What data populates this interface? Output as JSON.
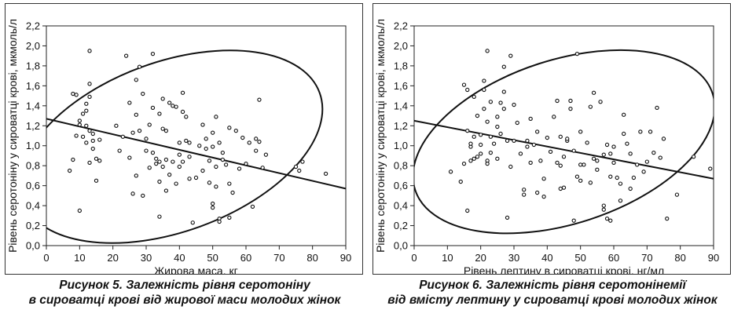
{
  "chart_data": [
    {
      "type": "scatter",
      "title": "",
      "xlabel": "Жирова маса, кг",
      "ylabel": "Рівень серотоніну у сироватці крові, мкмоль/л",
      "xlim": [
        0,
        90
      ],
      "ylim": [
        0,
        2.2
      ],
      "xticks": [
        "0",
        "10",
        "20",
        "30",
        "40",
        "50",
        "60",
        "70",
        "80",
        "90"
      ],
      "yticks": [
        "0,0",
        "0,2",
        "0,4",
        "0,6",
        "0,8",
        "1,0",
        "1,2",
        "1,4",
        "1,6",
        "1,8",
        "2,0",
        "2,2"
      ],
      "grid": false,
      "regression_line": [
        [
          0,
          1.27
        ],
        [
          90,
          0.57
        ]
      ],
      "ellipse": {
        "center": [
          37.5,
          0.99
        ],
        "radius_x": 47.5,
        "radius_y": 0.85,
        "rotation_deg": -20
      },
      "caption_lines": [
        "Рисунок 5.  Залежність рівня серотоніну",
        "в сироватці крові від жирової маси молодих жінок"
      ],
      "points": [
        [
          7,
          0.75
        ],
        [
          8,
          0.86
        ],
        [
          8,
          1.52
        ],
        [
          9,
          1.1
        ],
        [
          9,
          1.51
        ],
        [
          10,
          0.35
        ],
        [
          10,
          1.21
        ],
        [
          10,
          1.25
        ],
        [
          11,
          1.09
        ],
        [
          11,
          1.32
        ],
        [
          12,
          1.03
        ],
        [
          12,
          1.2
        ],
        [
          12,
          1.35
        ],
        [
          12,
          1.42
        ],
        [
          13,
          1.95
        ],
        [
          13,
          1.15
        ],
        [
          13,
          0.83
        ],
        [
          13,
          1.49
        ],
        [
          13,
          1.62
        ],
        [
          14,
          1.05
        ],
        [
          14,
          1.12
        ],
        [
          14,
          0.97
        ],
        [
          15,
          0.87
        ],
        [
          15,
          0.65
        ],
        [
          16,
          1.06
        ],
        [
          16,
          0.85
        ],
        [
          21,
          1.2
        ],
        [
          22,
          0.95
        ],
        [
          23,
          1.09
        ],
        [
          24,
          1.9
        ],
        [
          25,
          0.88
        ],
        [
          25,
          1.43
        ],
        [
          26,
          1.13
        ],
        [
          26,
          0.52
        ],
        [
          27,
          1.66
        ],
        [
          27,
          1.31
        ],
        [
          27,
          0.7
        ],
        [
          28,
          1.79
        ],
        [
          28,
          1.15
        ],
        [
          29,
          0.5
        ],
        [
          29,
          1.52
        ],
        [
          30,
          0.95
        ],
        [
          30,
          1.07
        ],
        [
          31,
          0.78
        ],
        [
          31,
          1.21
        ],
        [
          32,
          1.92
        ],
        [
          32,
          1.38
        ],
        [
          32,
          0.93
        ],
        [
          33,
          0.82
        ],
        [
          33,
          0.87
        ],
        [
          34,
          0.29
        ],
        [
          34,
          0.64
        ],
        [
          34,
          1.32
        ],
        [
          34,
          0.84
        ],
        [
          35,
          1.47
        ],
        [
          35,
          0.79
        ],
        [
          35,
          1.17
        ],
        [
          36,
          0.55
        ],
        [
          36,
          1.15
        ],
        [
          36,
          0.86
        ],
        [
          37,
          1.43
        ],
        [
          37,
          0.71
        ],
        [
          38,
          0.84
        ],
        [
          38,
          1.4
        ],
        [
          39,
          1.39
        ],
        [
          39,
          0.62
        ],
        [
          40,
          1.03
        ],
        [
          40,
          0.79
        ],
        [
          40,
          0.91
        ],
        [
          41,
          1.53
        ],
        [
          41,
          1.34
        ],
        [
          41,
          0.84
        ],
        [
          42,
          1.29
        ],
        [
          42,
          1.05
        ],
        [
          43,
          1.03
        ],
        [
          43,
          0.89
        ],
        [
          43,
          0.67
        ],
        [
          44,
          0.23
        ],
        [
          45,
          0.68
        ],
        [
          46,
          1.0
        ],
        [
          47,
          1.21
        ],
        [
          47,
          0.75
        ],
        [
          48,
          1.07
        ],
        [
          48,
          0.97
        ],
        [
          49,
          0.85
        ],
        [
          49,
          0.63
        ],
        [
          50,
          0.42
        ],
        [
          50,
          0.38
        ],
        [
          50,
          1.13
        ],
        [
          50,
          0.99
        ],
        [
          51,
          0.79
        ],
        [
          51,
          0.59
        ],
        [
          51,
          1.29
        ],
        [
          52,
          0.27
        ],
        [
          52,
          0.24
        ],
        [
          52,
          1.03
        ],
        [
          53,
          0.93
        ],
        [
          53,
          0.86
        ],
        [
          54,
          0.81
        ],
        [
          55,
          1.18
        ],
        [
          55,
          0.62
        ],
        [
          55,
          0.28
        ],
        [
          56,
          0.53
        ],
        [
          57,
          1.15
        ],
        [
          58,
          0.77
        ],
        [
          59,
          1.08
        ],
        [
          60,
          0.82
        ],
        [
          61,
          1.03
        ],
        [
          62,
          0.39
        ],
        [
          63,
          1.07
        ],
        [
          63,
          0.95
        ],
        [
          64,
          1.46
        ],
        [
          64,
          1.04
        ],
        [
          65,
          0.78
        ],
        [
          66,
          0.91
        ],
        [
          75,
          0.79
        ],
        [
          76,
          0.75
        ],
        [
          77,
          0.84
        ],
        [
          84,
          0.72
        ]
      ]
    },
    {
      "type": "scatter",
      "title": "",
      "xlabel": "Рівень лептину в сироватці крові, нг/мл",
      "ylabel": "Рівень серотоніну у сироватці крові, мкмоль/л",
      "xlim": [
        0,
        90
      ],
      "ylim": [
        0,
        2.2
      ],
      "xticks": [
        "0",
        "10",
        "20",
        "30",
        "40",
        "50",
        "60",
        "70",
        "80",
        "90"
      ],
      "yticks": [
        "0,0",
        "0,2",
        "0,4",
        "0,6",
        "0,8",
        "1,0",
        "1,2",
        "1,4",
        "1,6",
        "1,8",
        "2,0",
        "2,2"
      ],
      "grid": false,
      "regression_line": [
        [
          0,
          1.25
        ],
        [
          90,
          0.67
        ]
      ],
      "ellipse": {
        "center": [
          45,
          1.04
        ],
        "radius_x": 47,
        "radius_y": 0.82,
        "rotation_deg": -18
      },
      "caption_lines": [
        "Рисунок 6.  Залежність рівня серотонінемії",
        "від вмісту лептину у сироватці крові молодих жінок"
      ],
      "points": [
        [
          11,
          0.74
        ],
        [
          14,
          0.64
        ],
        [
          15,
          1.61
        ],
        [
          15,
          0.82
        ],
        [
          16,
          1.15
        ],
        [
          16,
          1.56
        ],
        [
          16,
          0.35
        ],
        [
          17,
          0.99
        ],
        [
          17,
          0.85
        ],
        [
          17,
          1.02
        ],
        [
          18,
          0.87
        ],
        [
          18,
          1.49
        ],
        [
          18,
          1.09
        ],
        [
          19,
          1.3
        ],
        [
          19,
          0.89
        ],
        [
          20,
          1.11
        ],
        [
          20,
          1.01
        ],
        [
          20,
          0.92
        ],
        [
          21,
          1.65
        ],
        [
          21,
          1.56
        ],
        [
          21,
          1.37
        ],
        [
          22,
          1.95
        ],
        [
          22,
          0.85
        ],
        [
          22,
          1.24
        ],
        [
          22,
          0.82
        ],
        [
          23,
          1.09
        ],
        [
          23,
          1.44
        ],
        [
          23,
          0.93
        ],
        [
          24,
          1.02
        ],
        [
          25,
          1.19
        ],
        [
          25,
          1.29
        ],
        [
          25,
          0.87
        ],
        [
          26,
          1.43
        ],
        [
          26,
          1.12
        ],
        [
          27,
          1.37
        ],
        [
          27,
          1.54
        ],
        [
          27,
          1.79
        ],
        [
          28,
          0.28
        ],
        [
          28,
          1.05
        ],
        [
          29,
          1.9
        ],
        [
          29,
          0.79
        ],
        [
          30,
          1.41
        ],
        [
          30,
          1.05
        ],
        [
          31,
          1.23
        ],
        [
          32,
          0.92
        ],
        [
          33,
          0.56
        ],
        [
          33,
          0.51
        ],
        [
          34,
          1.05
        ],
        [
          34,
          0.99
        ],
        [
          35,
          1.27
        ],
        [
          35,
          0.83
        ],
        [
          36,
          1.01
        ],
        [
          37,
          1.14
        ],
        [
          37,
          0.53
        ],
        [
          38,
          0.85
        ],
        [
          39,
          0.67
        ],
        [
          39,
          0.49
        ],
        [
          40,
          1.08
        ],
        [
          41,
          0.94
        ],
        [
          42,
          1.29
        ],
        [
          43,
          0.83
        ],
        [
          43,
          1.45
        ],
        [
          44,
          1.09
        ],
        [
          44,
          0.8
        ],
        [
          44,
          0.57
        ],
        [
          45,
          0.58
        ],
        [
          45,
          0.89
        ],
        [
          46,
          1.05
        ],
        [
          46,
          1.07
        ],
        [
          47,
          1.37
        ],
        [
          47,
          1.45
        ],
        [
          48,
          0.95
        ],
        [
          48,
          0.25
        ],
        [
          49,
          1.92
        ],
        [
          49,
          0.69
        ],
        [
          50,
          0.65
        ],
        [
          50,
          1.14
        ],
        [
          50,
          0.81
        ],
        [
          51,
          0.81
        ],
        [
          52,
          1.03
        ],
        [
          53,
          0.63
        ],
        [
          53,
          1.39
        ],
        [
          54,
          1.53
        ],
        [
          54,
          0.87
        ],
        [
          55,
          0.85
        ],
        [
          55,
          0.76
        ],
        [
          56,
          1.44
        ],
        [
          57,
          0.4
        ],
        [
          57,
          0.36
        ],
        [
          57,
          0.91
        ],
        [
          58,
          0.27
        ],
        [
          58,
          1.01
        ],
        [
          59,
          0.25
        ],
        [
          59,
          0.69
        ],
        [
          59,
          0.92
        ],
        [
          60,
          0.99
        ],
        [
          60,
          0.83
        ],
        [
          61,
          0.68
        ],
        [
          62,
          0.62
        ],
        [
          62,
          0.45
        ],
        [
          63,
          1.12
        ],
        [
          63,
          1.31
        ],
        [
          64,
          1.02
        ],
        [
          65,
          0.92
        ],
        [
          65,
          0.57
        ],
        [
          66,
          0.68
        ],
        [
          67,
          0.81
        ],
        [
          68,
          1.14
        ],
        [
          69,
          0.74
        ],
        [
          70,
          0.84
        ],
        [
          71,
          1.14
        ],
        [
          72,
          0.93
        ],
        [
          73,
          1.38
        ],
        [
          74,
          0.88
        ],
        [
          75,
          1.07
        ],
        [
          76,
          0.27
        ],
        [
          79,
          0.51
        ],
        [
          84,
          0.89
        ],
        [
          89,
          0.77
        ]
      ]
    }
  ]
}
